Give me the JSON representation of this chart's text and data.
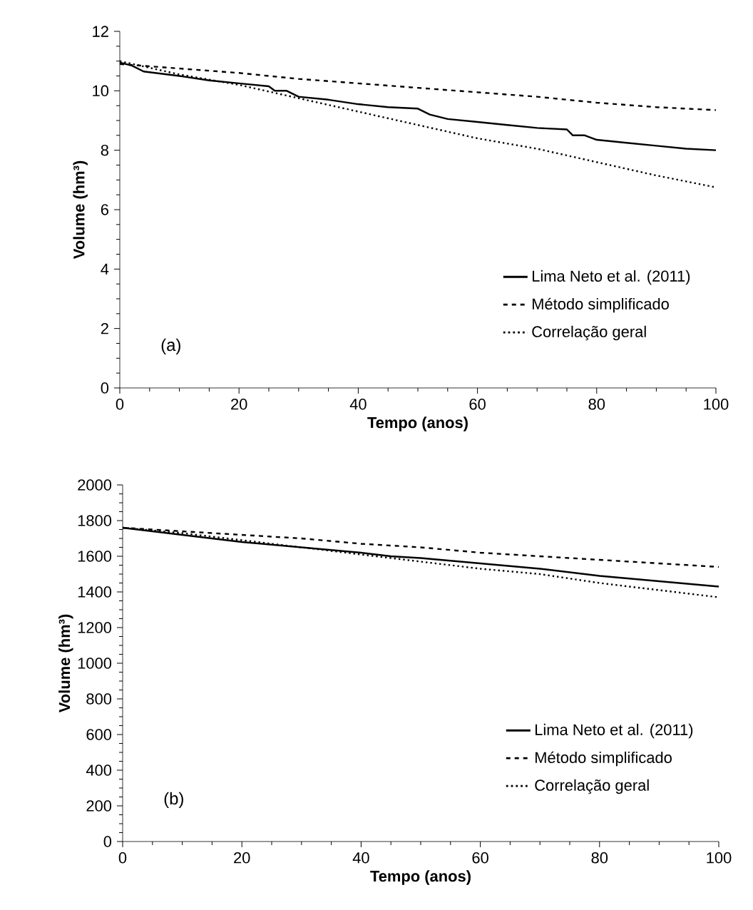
{
  "chart_data": [
    {
      "type": "line",
      "xlabel": "Tempo (anos)",
      "ylabel": "Volume (hm³)",
      "annotations": [
        "(a)"
      ],
      "xlim": [
        0,
        100
      ],
      "xticks": [
        0,
        20,
        40,
        60,
        80,
        100
      ],
      "ylim": [
        0,
        12
      ],
      "yticks": [
        0,
        2,
        4,
        6,
        8,
        10,
        12
      ],
      "legend": "bottom right",
      "grid": false,
      "marker": "none",
      "series": [
        {
          "name": "Lima Neto et al. (2011)",
          "color": "#000000",
          "line_style": "solid",
          "x": [
            0,
            2,
            4,
            10,
            15,
            20,
            25,
            26,
            28,
            30,
            35,
            40,
            45,
            50,
            52,
            55,
            60,
            65,
            70,
            75,
            76,
            78,
            80,
            85,
            90,
            95,
            100
          ],
          "values": [
            10.95,
            10.85,
            10.65,
            10.5,
            10.35,
            10.25,
            10.15,
            10.0,
            10.0,
            9.8,
            9.7,
            9.55,
            9.45,
            9.4,
            9.2,
            9.05,
            8.95,
            8.85,
            8.75,
            8.7,
            8.5,
            8.5,
            8.35,
            8.25,
            8.15,
            8.05,
            8.0
          ]
        },
        {
          "name": "Método simplificado",
          "color": "#000000",
          "line_style": "dashed",
          "x": [
            0,
            10,
            20,
            30,
            40,
            50,
            60,
            70,
            80,
            90,
            100
          ],
          "values": [
            10.9,
            10.75,
            10.6,
            10.4,
            10.25,
            10.1,
            9.95,
            9.8,
            9.6,
            9.45,
            9.35
          ]
        },
        {
          "name": "Correlação geral",
          "color": "#000000",
          "line_style": "dotted",
          "x": [
            0,
            10,
            20,
            30,
            40,
            50,
            60,
            70,
            80,
            90,
            100
          ],
          "values": [
            11.0,
            10.55,
            10.2,
            9.75,
            9.3,
            8.85,
            8.4,
            8.05,
            7.6,
            7.15,
            6.75
          ]
        }
      ]
    },
    {
      "type": "line",
      "xlabel": "Tempo (anos)",
      "ylabel": "Volume (hm³)",
      "annotations": [
        "(b)"
      ],
      "xlim": [
        0,
        100
      ],
      "xticks": [
        0,
        20,
        40,
        60,
        80,
        100
      ],
      "ylim": [
        0,
        2000
      ],
      "yticks": [
        0,
        200,
        400,
        600,
        800,
        1000,
        1200,
        1400,
        1600,
        1800,
        2000
      ],
      "legend": "bottom right",
      "grid": false,
      "marker": "none",
      "series": [
        {
          "name": "Lima Neto et al. (2011)",
          "color": "#000000",
          "line_style": "solid",
          "x": [
            0,
            10,
            15,
            20,
            30,
            40,
            45,
            50,
            60,
            70,
            80,
            90,
            100
          ],
          "values": [
            1760,
            1720,
            1700,
            1680,
            1650,
            1620,
            1600,
            1590,
            1560,
            1530,
            1490,
            1460,
            1430
          ]
        },
        {
          "name": "Método simplificado",
          "color": "#000000",
          "line_style": "dashed",
          "x": [
            0,
            10,
            20,
            30,
            40,
            50,
            60,
            70,
            80,
            90,
            100
          ],
          "values": [
            1760,
            1740,
            1720,
            1700,
            1670,
            1650,
            1620,
            1600,
            1580,
            1560,
            1540
          ]
        },
        {
          "name": "Correlação geral",
          "color": "#000000",
          "line_style": "dotted",
          "x": [
            0,
            10,
            20,
            30,
            40,
            50,
            60,
            70,
            80,
            90,
            100
          ],
          "values": [
            1760,
            1730,
            1690,
            1650,
            1610,
            1570,
            1530,
            1500,
            1450,
            1410,
            1370
          ]
        }
      ]
    }
  ]
}
